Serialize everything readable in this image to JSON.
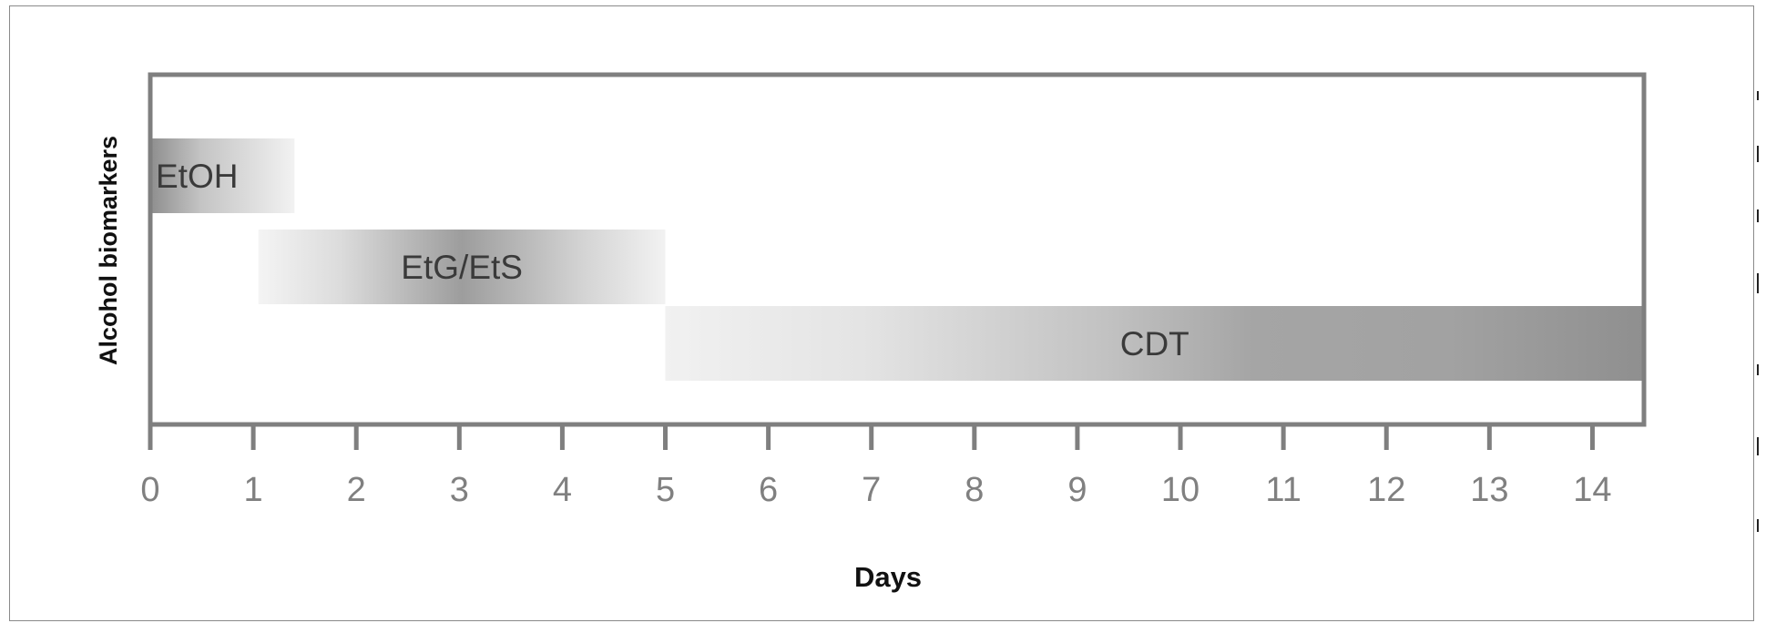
{
  "chart_data": {
    "type": "bar",
    "orientation": "horizontal",
    "xlabel": "Days",
    "ylabel": "Alcohol biomarkers",
    "xlim": [
      0,
      14.5
    ],
    "x_ticks": [
      0,
      1,
      2,
      3,
      4,
      5,
      6,
      7,
      8,
      9,
      10,
      11,
      12,
      13,
      14
    ],
    "grid": false,
    "series": [
      {
        "name": "EtOH",
        "start": 0,
        "end": 1.4,
        "row": 0,
        "shade": "dark-to-light"
      },
      {
        "name": "EtG/EtS",
        "start": 1.05,
        "end": 5.0,
        "row": 1,
        "shade": "light-dark-light"
      },
      {
        "name": "CDT",
        "start": 5.0,
        "end": 14.5,
        "row": 2,
        "shade": "light-to-dark"
      }
    ],
    "colors": {
      "axis": "#7f7f7f",
      "tick_label": "#808080",
      "bar_dark": "#9a9a9a",
      "bar_light": "#f1f1f1"
    }
  }
}
